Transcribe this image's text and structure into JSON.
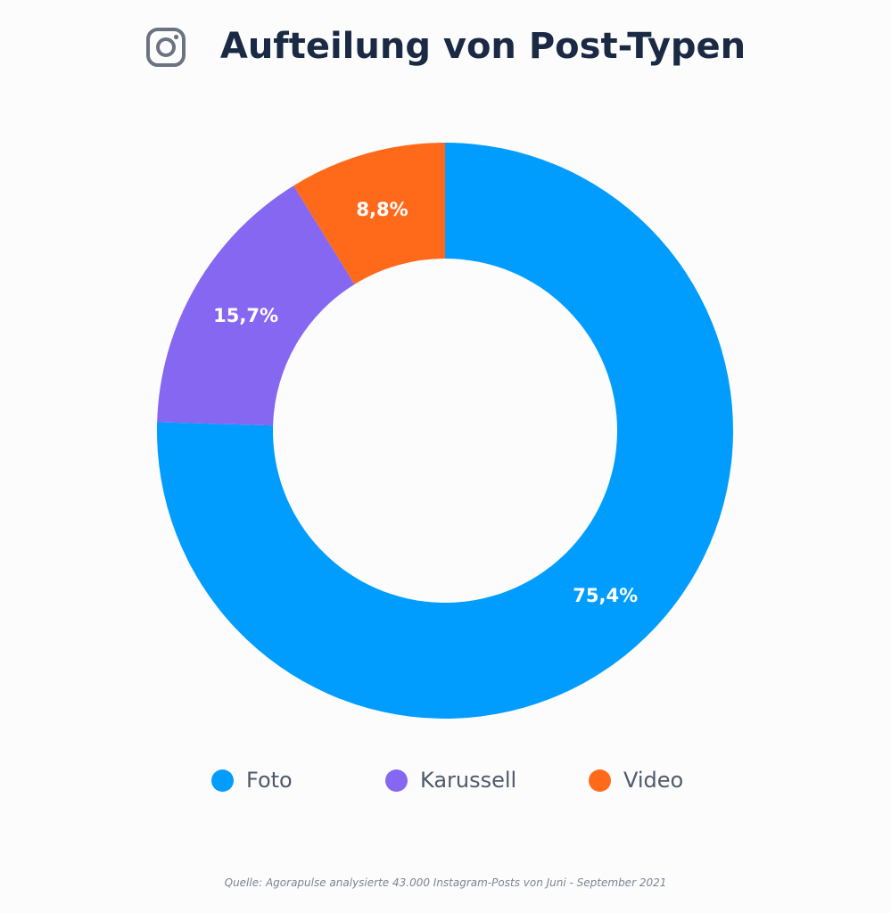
{
  "header": {
    "title": "Aufteilung von Post-Typen",
    "icon": "instagram-icon"
  },
  "chart_data": {
    "type": "pie",
    "variant": "donut",
    "title": "Aufteilung von Post-Typen",
    "series": [
      {
        "name": "Foto",
        "value": 75.4,
        "label": "75,4%",
        "color": "#009dff"
      },
      {
        "name": "Karussell",
        "value": 15.7,
        "label": "15,7%",
        "color": "#8667f2"
      },
      {
        "name": "Video",
        "value": 8.8,
        "label": "8,8%",
        "color": "#ff6a1a"
      }
    ],
    "legend_position": "bottom"
  },
  "legend": {
    "items": [
      {
        "label": "Foto",
        "color": "#009dff"
      },
      {
        "label": "Karussell",
        "color": "#8667f2"
      },
      {
        "label": "Video",
        "color": "#ff6a1a"
      }
    ]
  },
  "footer": {
    "source": "Quelle: Agorapulse analysierte 43.000 Instagram-Posts von Juni - September 2021"
  },
  "colors": {
    "title": "#1b2a44",
    "icon": "#6b7280",
    "legend_text": "#505a6a",
    "source_text": "#7c8594",
    "background": "#fcfcfc"
  }
}
